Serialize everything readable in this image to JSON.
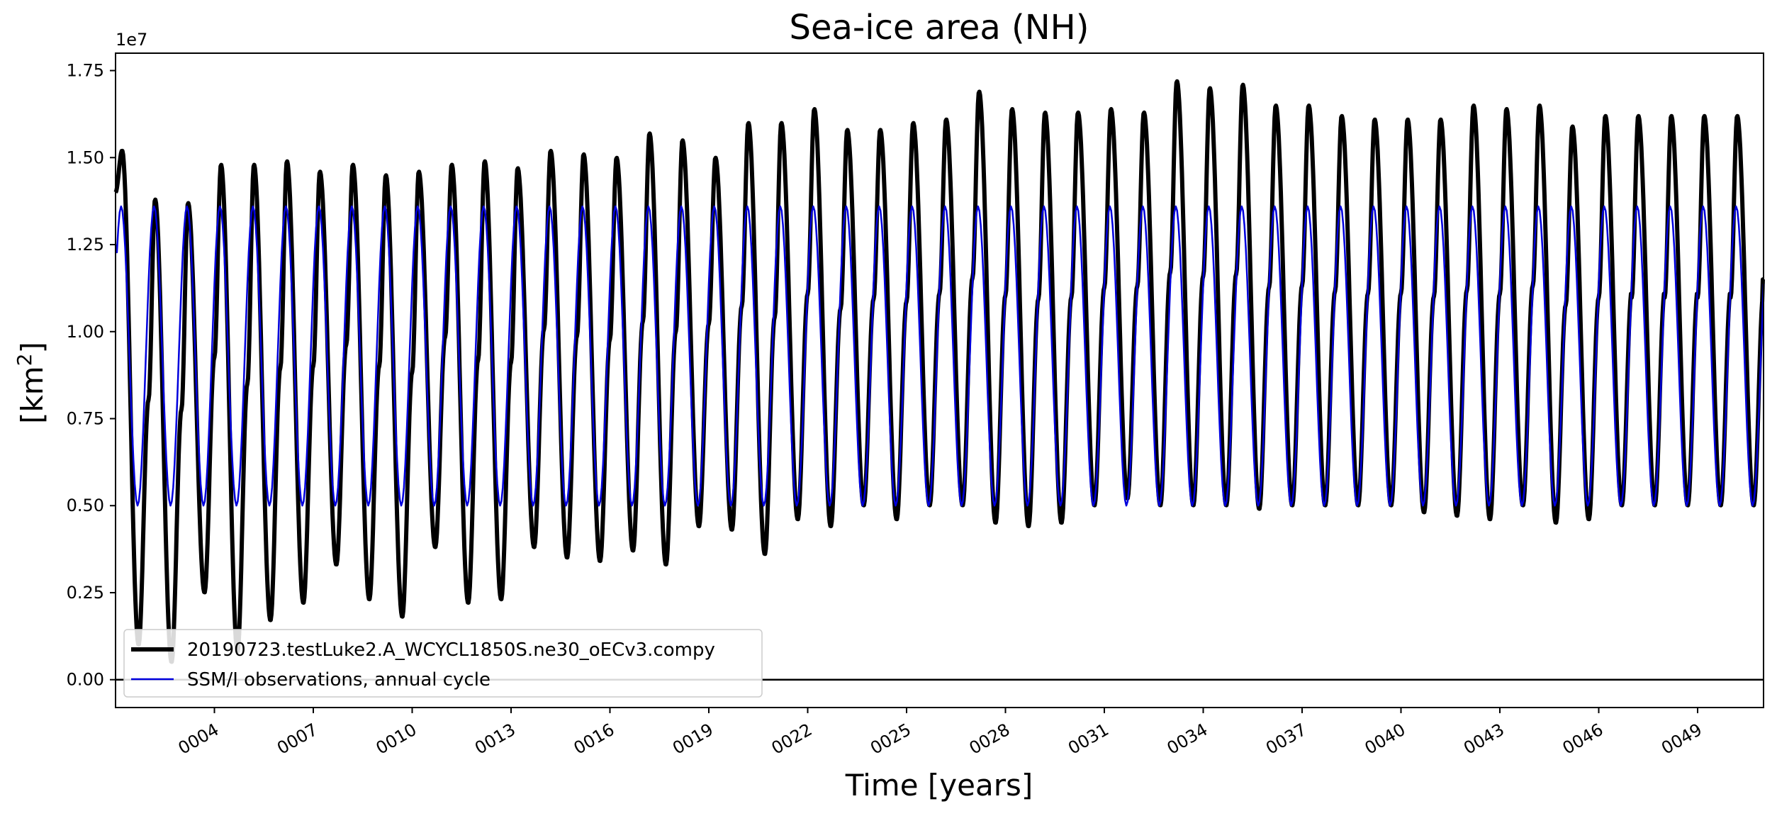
{
  "chart_data": {
    "type": "line",
    "title": "Sea-ice area (NH)",
    "xlabel": "Time [years]",
    "ylabel_base": "[km",
    "ylabel_sup": "2",
    "ylabel_end": "]",
    "y_scale_label": "1e7",
    "y_scale": 10000000,
    "xlim": [
      1.0,
      51.0
    ],
    "ylim": [
      -0.08,
      1.8
    ],
    "y_ticks": [
      0.0,
      0.25,
      0.5,
      0.75,
      1.0,
      1.25,
      1.5,
      1.75
    ],
    "y_tick_labels": [
      "0.00",
      "0.25",
      "0.50",
      "0.75",
      "1.00",
      "1.25",
      "1.50",
      "1.75"
    ],
    "x_ticks": [
      4,
      7,
      10,
      13,
      16,
      19,
      22,
      25,
      28,
      31,
      34,
      37,
      40,
      43,
      46,
      49
    ],
    "x_tick_labels": [
      "0004",
      "0007",
      "0010",
      "0013",
      "0016",
      "0019",
      "0022",
      "0025",
      "0028",
      "0031",
      "0034",
      "0037",
      "0040",
      "0043",
      "0046",
      "0049"
    ],
    "zero_line": 0.0,
    "legend_position": "lower-left",
    "series": [
      {
        "name": "20190723.testLuke2.A_WCYCL1850S.ne30_oECv3.compy",
        "color": "#000000",
        "peaks": [
          1.52,
          1.38,
          1.37,
          1.48,
          1.48,
          1.49,
          1.46,
          1.48,
          1.45,
          1.46,
          1.48,
          1.49,
          1.47,
          1.52,
          1.51,
          1.5,
          1.57,
          1.55,
          1.5,
          1.6,
          1.6,
          1.64,
          1.58,
          1.58,
          1.6,
          1.61,
          1.69,
          1.64,
          1.63,
          1.63,
          1.64,
          1.63,
          1.72,
          1.7,
          1.71,
          1.65,
          1.65,
          1.62,
          1.61,
          1.61,
          1.61,
          1.65,
          1.64,
          1.65,
          1.59,
          1.62
        ],
        "troughs": [
          0.1,
          0.05,
          0.25,
          0.08,
          0.17,
          0.22,
          0.33,
          0.23,
          0.18,
          0.38,
          0.22,
          0.23,
          0.38,
          0.35,
          0.34,
          0.37,
          0.33,
          0.44,
          0.43,
          0.36,
          0.46,
          0.44,
          0.5,
          0.46,
          0.5,
          0.5,
          0.45,
          0.44,
          0.45,
          0.5,
          0.52,
          0.5,
          0.5,
          0.5,
          0.49,
          0.5,
          0.5,
          0.5,
          0.5,
          0.48,
          0.47,
          0.46,
          0.5,
          0.45,
          0.46,
          0.5
        ],
        "end_value": 1.15
      },
      {
        "name": "SSM/I observations, annual cycle",
        "color": "#0000dd",
        "annual_max": 1.36,
        "annual_min": 0.5,
        "start_value": 1.25
      }
    ]
  }
}
